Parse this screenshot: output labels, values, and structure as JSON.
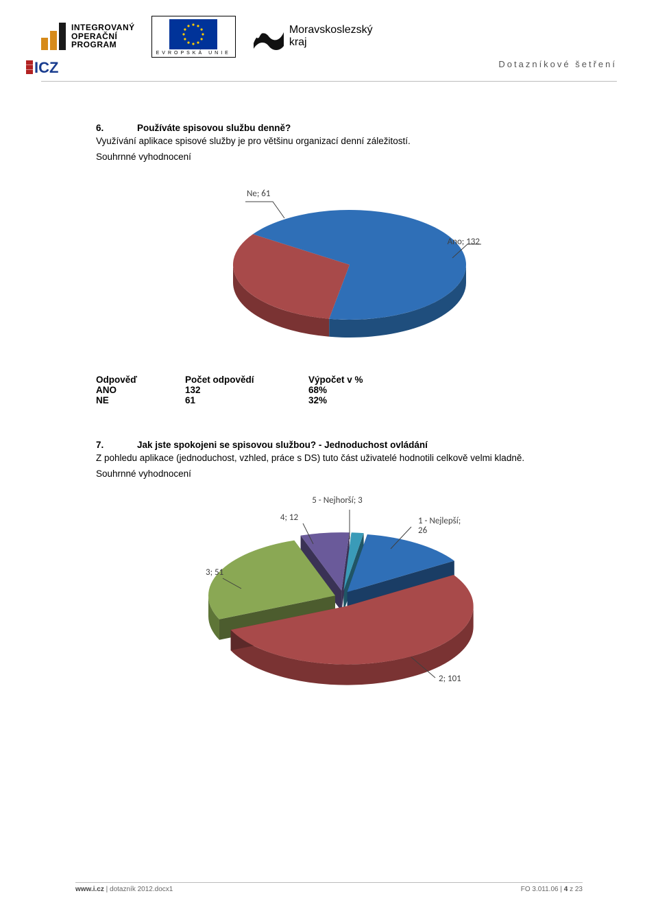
{
  "header": {
    "iop": {
      "line1": "INTEGROVANÝ",
      "line2": "OPERAČNÍ",
      "line3": "PROGRAM"
    },
    "eu_caption": "EVROPSKÁ UNIE",
    "msk": {
      "line1": "Moravskoslezský",
      "line2": "kraj"
    },
    "right_label": "Dotazníkové šetření"
  },
  "q6": {
    "number": "6.",
    "title": "Používáte spisovou službu denně?",
    "text": "Využívání aplikace spisové služby je pro většinu organizací denní záležitostí.",
    "summary_label": "Souhrnné vyhodnocení",
    "chart": {
      "type": "pie3d",
      "slices": [
        {
          "key": "Ano",
          "value": 132,
          "label": "Ano; 132",
          "color": "#2f6fb7",
          "side": "#1f4e7d"
        },
        {
          "key": "Ne",
          "value": 61,
          "label": "Ne; 61",
          "color": "#a84a4a",
          "side": "#7a3333"
        }
      ],
      "background": "#ffffff",
      "text_color": "#404040",
      "title_fontsize": 13
    },
    "table": {
      "head": [
        "Odpověď",
        "Počet odpovědí",
        "Výpočet v %"
      ],
      "rows": [
        [
          "ANO",
          "132",
          "68%"
        ],
        [
          "NE",
          "61",
          "32%"
        ]
      ]
    }
  },
  "q7": {
    "number": "7.",
    "title": "Jak jste spokojeni se spisovou službou? - Jednoduchost ovládání",
    "text": "Z pohledu aplikace (jednoduchost, vzhled, práce s DS) tuto část uživatelé hodnotili celkově velmi kladně.",
    "summary_label": "Souhrnné vyhodnocení",
    "chart": {
      "type": "pie3d_exploded",
      "slices": [
        {
          "key": "1",
          "value": 26,
          "label": "1 - Nejlepší;\n26",
          "color": "#2f6fb7",
          "side": "#1f4e7d"
        },
        {
          "key": "2",
          "value": 101,
          "label": "2; 101",
          "color": "#a84a4a",
          "side": "#7a3333"
        },
        {
          "key": "3",
          "value": 51,
          "label": "3; 51",
          "color": "#8aa854",
          "side": "#5e7537"
        },
        {
          "key": "4",
          "value": 12,
          "label": "4; 12",
          "color": "#6a5a9a",
          "side": "#493e6c"
        },
        {
          "key": "5",
          "value": 3,
          "label": "5 - Nejhorší; 3",
          "color": "#3a9bb8",
          "side": "#2a7089"
        }
      ],
      "background": "#ffffff",
      "text_color": "#404040",
      "title_fontsize": 13
    }
  },
  "footer": {
    "left_prefix": "www.i.cz",
    "left_sep": " | ",
    "left_file": "dotazník 2012.docx1",
    "right_code": "FO 3.011.06",
    "right_sep": " | ",
    "right_page_prefix": "4",
    "right_page_mid": " z ",
    "right_page_total": "23"
  },
  "colors": {
    "rule": "#bbbbbb",
    "text": "#000000",
    "muted": "#666666",
    "iop_orange": "#d68a1a"
  }
}
